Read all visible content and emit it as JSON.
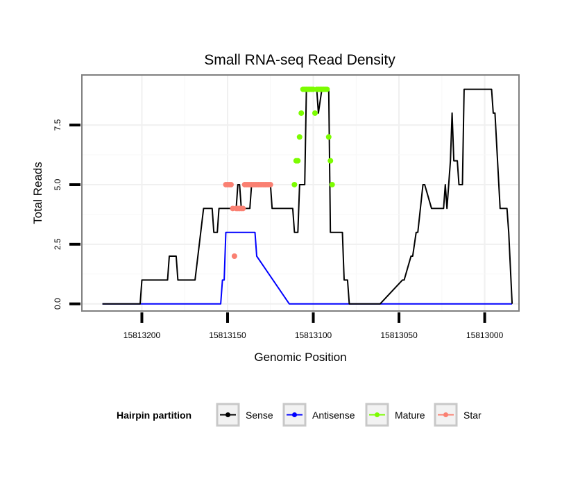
{
  "chart_data": {
    "type": "line",
    "title": "Small RNA-seq Read Density",
    "xlabel": "Genomic Position",
    "ylabel": "Total Reads",
    "x_reversed": true,
    "xlim": [
      15813235,
      15812980
    ],
    "ylim": [
      -0.3,
      9.6
    ],
    "x_ticks": [
      15813200,
      15813150,
      15813100,
      15813050,
      15813000
    ],
    "x_tick_labels": [
      "15813200",
      "15813150",
      "15813100",
      "15813050",
      "15813000"
    ],
    "y_ticks": [
      0,
      2.5,
      5,
      7.5
    ],
    "y_tick_labels": [
      "0.0",
      "2.5",
      "5.0",
      "7.5"
    ],
    "grid": true,
    "legend": {
      "title": "Hairpin partition",
      "position": "bottom",
      "entries": [
        {
          "label": "Sense",
          "color": "#000000"
        },
        {
          "label": "Antisense",
          "color": "#0000ff"
        },
        {
          "label": "Mature",
          "color": "#7cfc00"
        },
        {
          "label": "Star",
          "color": "#fa8072"
        }
      ]
    },
    "series": [
      {
        "name": "Sense",
        "color": "#000000",
        "x": [
          15813223,
          15813201,
          15813200,
          15813185,
          15813184,
          15813180,
          15813179,
          15813169,
          15813164,
          15813159,
          15813158,
          15813156,
          15813155,
          15813145,
          15813144,
          15813143,
          15813142,
          15813137,
          15813136,
          15813125,
          15813124,
          15813112,
          15813111,
          15813109,
          15813108,
          15813105,
          15813104,
          15813098,
          15813097,
          15813095,
          15813091,
          15813090,
          15813083,
          15813082,
          15813080,
          15813079,
          15813076,
          15813075,
          15813061,
          15813048,
          15813047,
          15813043,
          15813042,
          15813040,
          15813039,
          15813036,
          15813035,
          15813031,
          15813030,
          15813024,
          15813023,
          15813022,
          15813021,
          15813020,
          15813019,
          15813018,
          15813016,
          15813015,
          15813013,
          15813012,
          15812996,
          15812995,
          15812994,
          15812991,
          15812990,
          15812987,
          15812986,
          15812984
        ],
        "y": [
          0,
          0,
          1,
          1,
          2,
          2,
          1,
          1,
          4,
          4,
          3,
          3,
          4,
          4,
          5,
          5,
          4,
          4,
          5,
          5,
          4,
          4,
          3,
          3,
          5,
          5,
          9,
          9,
          8,
          9,
          9,
          3,
          3,
          1,
          1,
          0,
          0,
          0,
          0,
          1,
          1,
          2,
          2,
          3,
          3,
          5,
          5,
          4,
          4,
          4,
          5,
          4,
          5,
          6,
          8,
          6,
          6,
          5,
          5,
          9,
          9,
          8,
          8,
          4,
          4,
          4,
          3,
          0
        ]
      },
      {
        "name": "Antisense",
        "color": "#0000ff",
        "x": [
          15813223,
          15813154,
          15813153,
          15813152,
          15813151,
          15813134,
          15813133,
          15813114,
          15813113,
          15812984
        ],
        "y": [
          0,
          0,
          1,
          1,
          3,
          3,
          2,
          0,
          0,
          0
        ]
      },
      {
        "name": "Mature",
        "color": "#7cfc00",
        "x": [
          15813111,
          15813110,
          15813109,
          15813108,
          15813107,
          15813106,
          15813105,
          15813104,
          15813103,
          15813102,
          15813101,
          15813100,
          15813099,
          15813098,
          15813097,
          15813096,
          15813095,
          15813094,
          15813093,
          15813092,
          15813091,
          15813090,
          15813089
        ],
        "y": [
          5,
          6,
          6,
          7,
          8,
          9,
          9,
          9,
          9,
          9,
          9,
          9,
          8,
          9,
          9,
          9,
          9,
          9,
          9,
          9,
          7,
          6,
          5
        ]
      },
      {
        "name": "Star",
        "color": "#fa8072",
        "x": [
          15813151,
          15813150,
          15813149,
          15813148,
          15813147,
          15813146,
          15813145,
          15813144,
          15813143,
          15813142,
          15813141,
          15813140,
          15813139,
          15813138,
          15813137,
          15813136,
          15813135,
          15813134,
          15813133,
          15813132,
          15813131,
          15813130,
          15813129,
          15813128,
          15813127,
          15813126,
          15813125
        ],
        "y": [
          5,
          5,
          5,
          5,
          4,
          2,
          4,
          4,
          4,
          4,
          4,
          5,
          5,
          5,
          5,
          5,
          5,
          5,
          5,
          5,
          5,
          5,
          5,
          5,
          5,
          5,
          5
        ]
      }
    ]
  }
}
